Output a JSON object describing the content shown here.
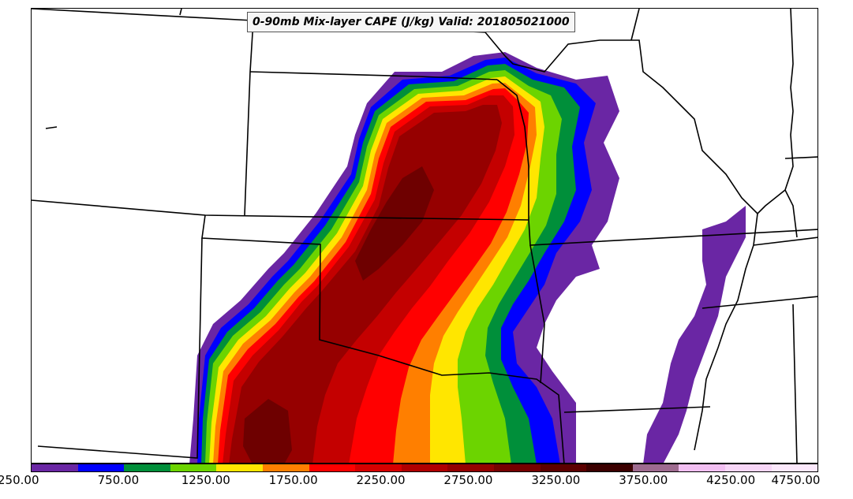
{
  "title": "0-90mb Mix-layer CAPE (J/kg) Valid: 201805021000",
  "colorbar": {
    "colors": [
      "#6a26a4",
      "#0000ff",
      "#008f3a",
      "#6cd400",
      "#ffe600",
      "#ff7f00",
      "#ff0000",
      "#d60000",
      "#b00000",
      "#940000",
      "#760000",
      "#5c0000",
      "#3c0000",
      "#9e6b8f",
      "#f2bff2",
      "#f7d6f7",
      "#fbe8fb"
    ],
    "tick_labels": [
      "250.00",
      "750.00",
      "1250.00",
      "1750.00",
      "2250.00",
      "2750.00",
      "3250.00",
      "3750.00",
      "4250.00",
      "4750.00"
    ]
  },
  "map": {
    "fill_colors": {
      "purple": "#6a26a4",
      "blue": "#0000ff",
      "green": "#008f3a",
      "lime": "#6cd400",
      "yellow": "#ffe600",
      "orange": "#ff7f00",
      "red": "#ff0000",
      "darkred1": "#c40000",
      "darkred2": "#960000",
      "darkred3": "#6e0000"
    }
  }
}
